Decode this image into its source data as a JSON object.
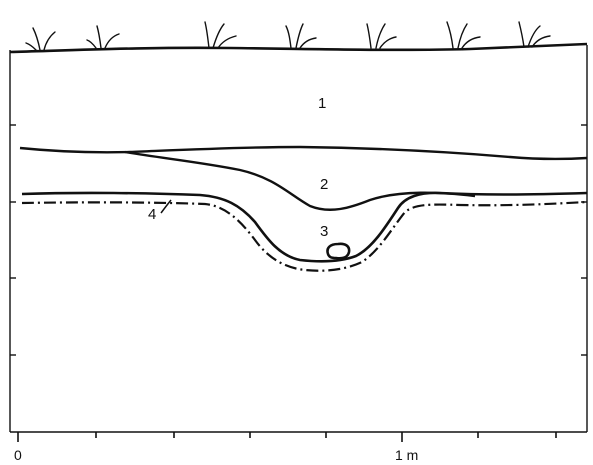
{
  "layers": [
    {
      "id": "1",
      "label": "1"
    },
    {
      "id": "2",
      "label": "2"
    },
    {
      "id": "3",
      "label": "3"
    },
    {
      "id": "4",
      "label": "4"
    }
  ],
  "scale": {
    "start_label": "0",
    "end_label": "1 m"
  },
  "colors": {
    "ink": "#111111",
    "background": "#ffffff"
  }
}
